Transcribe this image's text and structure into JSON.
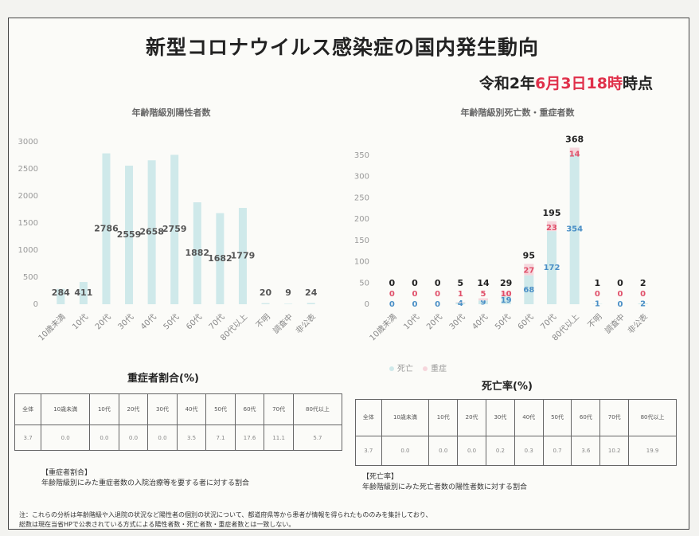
{
  "header": {
    "title": "新型コロナウイルス感染症の国内発生動向",
    "date_parts": [
      "令和2年",
      "6月3日18時",
      "時点"
    ]
  },
  "chart_data": [
    {
      "type": "bar",
      "title": "年齢階級別陽性者数",
      "categories": [
        "10歳未満",
        "10代",
        "20代",
        "30代",
        "40代",
        "50代",
        "60代",
        "70代",
        "80代以上",
        "不明",
        "調査中",
        "非公表"
      ],
      "values": [
        284,
        411,
        2786,
        2559,
        2658,
        2759,
        1882,
        1682,
        1779,
        20,
        9,
        24
      ],
      "color": "#cfe9ea",
      "ylim": [
        0,
        3000
      ],
      "yticks": [
        0,
        500,
        1000,
        1500,
        2000,
        2500,
        3000
      ]
    },
    {
      "type": "stacked_bar",
      "title": "年齢階級別死亡数・重症者数",
      "categories": [
        "10歳未満",
        "10代",
        "20代",
        "30代",
        "40代",
        "50代",
        "60代",
        "70代",
        "80代以上",
        "不明",
        "調査中",
        "非公表"
      ],
      "series": [
        {
          "name": "死亡",
          "color": "#cfe9ea",
          "label_color": "#4a8fc6",
          "values": [
            0,
            0,
            0,
            4,
            9,
            19,
            68,
            172,
            354,
            1,
            0,
            2
          ]
        },
        {
          "name": "重症",
          "color": "#f6d6dc",
          "label_color": "#e0506a",
          "values": [
            0,
            0,
            0,
            1,
            5,
            10,
            27,
            23,
            14,
            0,
            0,
            0
          ]
        }
      ],
      "totals": [
        0,
        0,
        0,
        5,
        14,
        29,
        95,
        195,
        368,
        1,
        0,
        2
      ],
      "ylim": [
        0,
        380
      ],
      "yticks": [
        0,
        50,
        100,
        150,
        200,
        250,
        300,
        350
      ]
    }
  ],
  "tables": [
    {
      "title": "重症者割合(%)",
      "headers": [
        "全体",
        "10歳未満",
        "10代",
        "20代",
        "30代",
        "40代",
        "50代",
        "60代",
        "70代",
        "80代以上"
      ],
      "values": [
        "3.7",
        "0.0",
        "0.0",
        "0.0",
        "0.0",
        "3.5",
        "7.1",
        "17.6",
        "11.1",
        "5.7"
      ]
    },
    {
      "title": "死亡率(%)",
      "headers": [
        "全体",
        "10歳未満",
        "10代",
        "20代",
        "30代",
        "40代",
        "50代",
        "60代",
        "70代",
        "80代以上"
      ],
      "values": [
        "3.7",
        "0.0",
        "0.0",
        "0.0",
        "0.2",
        "0.3",
        "0.7",
        "3.6",
        "10.2",
        "19.9"
      ]
    }
  ],
  "notes": {
    "severe": [
      "【重症者割合】",
      "年齢階級別にみた重症者数の入院治療等を要する者に対する割合"
    ],
    "death": [
      "【死亡率】",
      "年齢階級別にみた死亡者数の陽性者数に対する割合"
    ],
    "footer": [
      "注：これらの分析は年齢階級や入退院の状況など陽性者の個別の状況について、都道府県等から患者が情報を得られたもののみを集計しており、",
      "総数は現在当省HPで公表されている方式による陽性者数・死亡者数・重症者数とは一致しない。"
    ]
  }
}
